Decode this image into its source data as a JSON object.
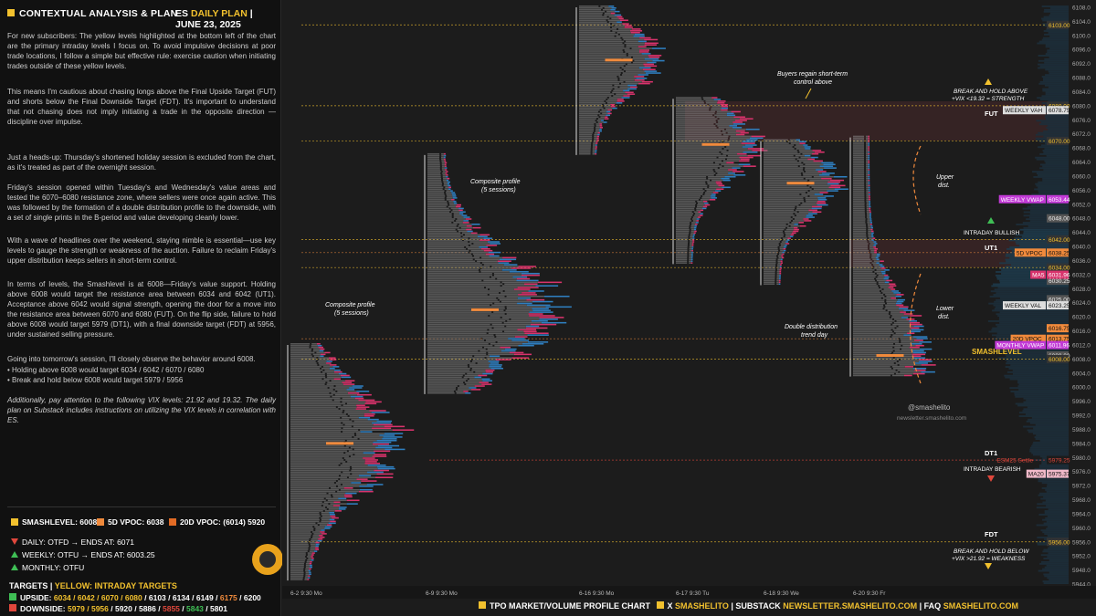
{
  "header": {
    "title": "CONTEXTUAL ANALYSIS & PLAN",
    "symbol": "ES",
    "plan": "DAILY PLAN",
    "date": "| JUNE 23, 2025"
  },
  "paragraphs": [
    "For new subscribers: The yellow levels highlighted at the bottom left of the chart are the primary intraday levels I focus on. To avoid impulsive decisions at poor trade locations, I follow a simple but effective rule: exercise caution when initiating trades outside of these yellow levels.",
    "This means I'm cautious about chasing longs above the Final Upside Target (FUT) and shorts below the Final Downside Target (FDT). It's important to understand that not chasing does not imply initiating a trade in the opposite direction — discipline over impulse.",
    "Just a heads-up: Thursday's shortened holiday session is excluded from the chart, as it's treated as part of the overnight session.",
    "Friday's session opened within Tuesday's and Wednesday's value areas and tested the 6070–6080 resistance zone, where sellers were once again active. This was followed by the formation of a double distribution profile to the downside, with a set of single prints in the B-period and value developing cleanly lower.",
    "With a wave of headlines over the weekend, staying nimble is essential—use key levels to gauge the strength or weakness of the auction. Failure to reclaim Friday's upper distribution keeps sellers in short-term control.",
    "In terms of levels, the Smashlevel is at 6008—Friday's value support. Holding above 6008 would target the resistance area between 6034 and 6042 (UT1). Acceptance above 6042 would signal strength, opening the door for a move into the resistance area between 6070 and 6080 (FUT). On the flip side, failure to hold above 6008 would target 5979 (DT1), with a final downside target (FDT) at 5956, under sustained selling pressure.",
    "Going into tomorrow's session, I'll closely observe the behavior around 6008.",
    "• Holding above 6008 would target 6034 / 6042 / 6070 / 6080",
    "• Break and hold below 6008 would target 5979 / 5956",
    "Additionally, pay attention to the following VIX levels: 21.92 and 19.32. The daily plan on Substack includes instructions on utilizing the VIX levels in correlation with ES."
  ],
  "levels": {
    "smash": "SMASHLEVEL: 6008",
    "vpoc5": "5D VPOC: 6038",
    "vpoc20": "20D VPOC: (6014) 5920"
  },
  "status": {
    "daily": "DAILY: OTFD → ENDS AT: 6071",
    "weekly": "WEEKLY: OTFU → ENDS AT: 6003.25",
    "monthly": "MONTHLY: OTFU"
  },
  "targets": {
    "title": "TARGETS",
    "subtitle": "YELLOW: INTRADAY TARGETS",
    "upside_label": "UPSIDE:",
    "upside_yellow": "6034 / 6042 / 6070 / 6080",
    "upside_rest": "/ 6103 / 6134 / 6149 /",
    "upside_orange": "6175",
    "upside_last": "/ 6200",
    "downside_label": "DOWNSIDE:",
    "downside_yellow": "5979 / 5956",
    "downside_rest": "/ 5920 / 5886 /",
    "downside_red": "5855",
    "downside_green": "5843",
    "downside_last": "/ 5801"
  },
  "footer": {
    "a": "TPO MARKET/VOLUME PROFILE CHART",
    "b": "X",
    "c": "SMASHELITO",
    "d": "| SUBSTACK",
    "e": "NEWSLETTER.SMASHELITO.COM",
    "f": "| FAQ",
    "g": "SMASHELITO.COM"
  },
  "colors": {
    "yellow": "#f2c12e",
    "orange": "#f08a3c",
    "green": "#3fbf55",
    "red": "#e0473c",
    "blue": "#2f7fc0",
    "pink": "#d8336c",
    "magenta": "#c23ad6"
  },
  "chart_data": {
    "type": "table",
    "y_axis": {
      "min": 5944,
      "max": 6108,
      "step": 4
    },
    "x_labels": [
      "6-2  9:30 Mo",
      "6-9  9:30 Mo",
      "6-16  9:30 Mo",
      "6-17  9:30 Tu",
      "6-18  9:30 We",
      "6-20  9:30 Fr"
    ],
    "levels": [
      {
        "label": "6103.00",
        "price": 6103,
        "kind": "target"
      },
      {
        "label": "6080.00",
        "price": 6080,
        "kind": "target"
      },
      {
        "label": "6078.75",
        "price": 6078.75,
        "kind": "weekly-vah"
      },
      {
        "label": "6070.00",
        "price": 6070,
        "kind": "target"
      },
      {
        "label": "6053.44",
        "price": 6053.44,
        "kind": "weekly-vwap"
      },
      {
        "label": "6048.00",
        "price": 6048,
        "kind": "marker"
      },
      {
        "label": "6042.00",
        "price": 6042,
        "kind": "target"
      },
      {
        "label": "6038.25",
        "price": 6038.25,
        "kind": "vpoc5"
      },
      {
        "label": "6034.00",
        "price": 6034,
        "kind": "target"
      },
      {
        "label": "6030.25",
        "price": 6030.25,
        "kind": "marker"
      },
      {
        "label": "6031.96",
        "price": 6031.96,
        "kind": "ma5"
      },
      {
        "label": "6025.00",
        "price": 6025,
        "kind": "marker"
      },
      {
        "label": "6023.25",
        "price": 6023.25,
        "kind": "weekly-val"
      },
      {
        "label": "6016.75",
        "price": 6016.75,
        "kind": "orange-marker"
      },
      {
        "label": "6013.75",
        "price": 6013.75,
        "kind": "vpoc20"
      },
      {
        "label": "6011.96",
        "price": 6011.96,
        "kind": "monthly-vwap"
      },
      {
        "label": "6009.00",
        "price": 6009,
        "kind": "marker"
      },
      {
        "label": "6008.00",
        "price": 6008,
        "kind": "smashlevel"
      },
      {
        "label": "5979.25",
        "price": 5979.25,
        "kind": "settle"
      },
      {
        "label": "5975.37",
        "price": 5975.37,
        "kind": "ma20"
      },
      {
        "label": "5956.00",
        "price": 5956,
        "kind": "target"
      }
    ],
    "label_texts": {
      "weekly_vah": "WEEKLY VAH",
      "weekly_vwap": "WEEKLY VWAP",
      "intraday_bullish": "INTRADAY BULLISH",
      "vpoc5": "5D VPOC",
      "ma5": "MA5",
      "weekly_val": "WEEKLY VAL",
      "vpoc20": "20D VPOC",
      "monthly_vwap": "MONTHLY VWAP",
      "smashlevel": "SMASHLEVEL",
      "settle": "ESM25 Settle",
      "ma20": "MA20",
      "intraday_bearish": "INTRADAY BEARISH",
      "fut": "FUT",
      "ut1": "UT1",
      "dt1": "DT1",
      "fdt": "FDT",
      "break_up_1": "BREAK AND HOLD ABOVE",
      "break_up_2": "+VIX <19.32 = STRENGTH",
      "break_dn_1": "BREAK AND HOLD BELOW",
      "break_dn_2": "+VIX >21.92 = WEAKNESS",
      "buyers_1": "Buyers regain short-term",
      "buyers_2": "control above",
      "comp1_1": "Composite profile",
      "comp1_2": "(5 sessions)",
      "comp2_1": "Composite profile",
      "comp2_2": "(5 sessions)",
      "dd_1": "Double distribution",
      "dd_2": "trend day",
      "upper_1": "Upper",
      "upper_2": "dist.",
      "lower_1": "Lower",
      "lower_2": "dist.",
      "handle": "@smashelito",
      "site": "newsletter.smashelito.com"
    },
    "profiles": [
      {
        "name": "composite-1",
        "low": 5945,
        "high": 6012,
        "poc": 5984
      },
      {
        "name": "composite-2",
        "low": 5998,
        "high": 6066,
        "poc": 6022
      },
      {
        "name": "session-6-16",
        "low": 6066,
        "high": 6108,
        "poc": 6093
      },
      {
        "name": "session-6-17",
        "low": 6035,
        "high": 6082,
        "poc": 6069
      },
      {
        "name": "session-6-18",
        "low": 6029,
        "high": 6070,
        "poc": 6058
      },
      {
        "name": "session-6-20",
        "low": 6003,
        "high": 6071,
        "poc": 6009
      }
    ]
  }
}
